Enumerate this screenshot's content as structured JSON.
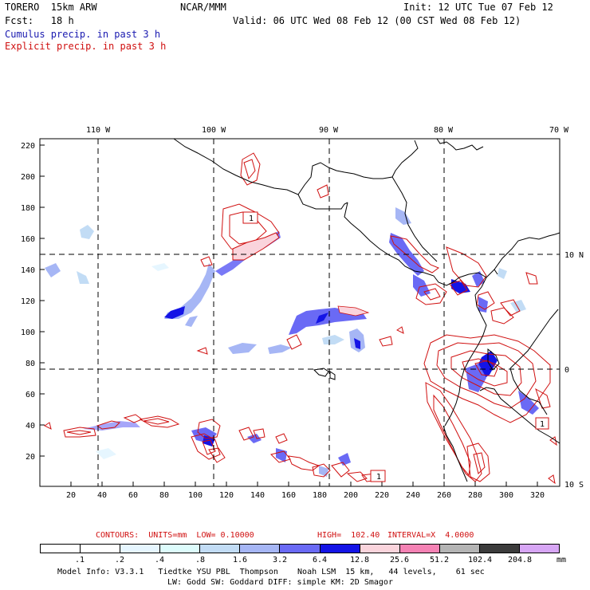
{
  "header": {
    "model": "TORERO  15km ARW",
    "org": "NCAR/MMM",
    "init": "Init: 12 UTC Tue 07 Feb 12",
    "fcst": "Fcst:   18 h",
    "valid": "Valid: 06 UTC Wed 08 Feb 12 (00 CST Wed 08 Feb 12)",
    "legend_cumulus": "Cumulus precip. in past 3 h",
    "legend_explicit": "Explicit precip. in past 3 h"
  },
  "axes": {
    "top_lon_labels": [
      "110 W",
      "100 W",
      "90 W",
      "80 W",
      "70 W"
    ],
    "right_lat_labels": [
      "10 N",
      "0",
      "10 S"
    ],
    "y_ticks": [
      "220",
      "200",
      "180",
      "160",
      "140",
      "120",
      "100",
      "80",
      "60",
      "40",
      "20"
    ],
    "x_ticks": [
      "20",
      "40",
      "60",
      "80",
      "100",
      "120",
      "140",
      "160",
      "180",
      "200",
      "220",
      "240",
      "260",
      "280",
      "300",
      "320"
    ]
  },
  "map_labels": {
    "contour_low_1": "1",
    "contour_low_2": "1",
    "contour_low_3": "1"
  },
  "contour_info": {
    "contours": "CONTOURS:  UNITS=mm  LOW= 0.10000",
    "high": "HIGH=  102.40",
    "interval": "INTERVAL=X  4.0000"
  },
  "colorbar": {
    "labels": [
      ".1",
      ".2",
      ".4",
      ".8",
      "1.6",
      "3.2",
      "6.4",
      "12.8",
      "25.6",
      "51.2",
      "102.4",
      "204.8"
    ],
    "units": "mm",
    "colors": [
      "#ffffff",
      "#ffffff",
      "#e6f6ff",
      "#ddfcfc",
      "#c2dcf5",
      "#a6b6f5",
      "#6a6af5",
      "#1414e6",
      "#fad4dc",
      "#f582b4",
      "#b4b4b4",
      "#3c3c3c",
      "#d7a6f5"
    ]
  },
  "footer": {
    "line1": "Model Info: V3.3.1   Tiedtke YSU PBL  Thompson    Noah LSM  15 km,   44 levels,    61 sec",
    "line2": "LW: Godd SW: Goddard DIFF: simple KM: 2D Smagor"
  }
}
